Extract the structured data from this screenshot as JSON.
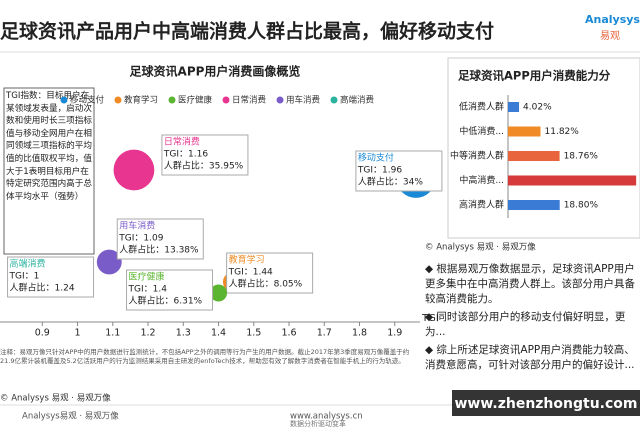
{
  "header": {
    "title": "足球资讯产品用户中高端消费人群占比最高，偏好移动支付",
    "logo": "Analysys",
    "logo_sub": "易观"
  },
  "chart_data": [
    {
      "type": "bubble",
      "title": "足球资讯APP用户消费画像概览",
      "x_label": "TGI",
      "xlim": [
        0.78,
        2.0
      ],
      "xticks": [
        0.9,
        1,
        1.1,
        1.2,
        1.3,
        1.4,
        1.5,
        1.6,
        1.7,
        1.8,
        1.9
      ],
      "note": "TGI指数：目标用户在某领域发表量，启动次数和使用时长三项指标值与移动全网用户在相同领域三项指标的平均值的比值取权平均，值大于1表明目标用户在特定研究范围内高于总体平均水平（强势）",
      "series": [
        {
          "name": "移动支付",
          "color": "#1a8ad6",
          "x": [
            1.96
          ],
          "values": [
            34
          ],
          "x_labels": [
            "TGI：1.96"
          ],
          "value_labels": [
            "人群占比：34%"
          ]
        },
        {
          "name": "教育学习",
          "color": "#f08a24",
          "x": [
            1.44
          ],
          "values": [
            8.05
          ],
          "x_labels": [
            "TGI：1.44"
          ],
          "value_labels": [
            "人群占比：8.05%"
          ]
        },
        {
          "name": "医疗健康",
          "color": "#5cb531",
          "x": [
            1.4
          ],
          "values": [
            6.31
          ],
          "x_labels": [
            "TGI：1.4"
          ],
          "value_labels": [
            "人群占比：6.31%"
          ]
        },
        {
          "name": "日常消费",
          "color": "#e8358f",
          "x": [
            1.16
          ],
          "values": [
            35.95
          ],
          "x_labels": [
            "TGI：1.16"
          ],
          "value_labels": [
            "人群占比：35.95%"
          ]
        },
        {
          "name": "用车消费",
          "color": "#7a5cc8",
          "x": [
            1.09
          ],
          "values": [
            13.38
          ],
          "x_labels": [
            "TGI：1.09"
          ],
          "value_labels": [
            "人群占比：13.38%"
          ]
        },
        {
          "name": "高端消费",
          "color": "#2bb3a0",
          "x": [
            1
          ],
          "values": [
            1.24
          ],
          "x_labels": [
            "TGI：1"
          ],
          "value_labels": [
            "人群占比：1.24"
          ]
        }
      ]
    },
    {
      "type": "hbar",
      "title": "足球资讯APP用户消费能力分",
      "categories": [
        "低消费人群",
        "中低消费...",
        "中等消费人群",
        "中高消费...",
        "高消费人群"
      ],
      "values": [
        4.02,
        11.82,
        18.76,
        46.6,
        18.8
      ],
      "value_labels": [
        "4.02%",
        "11.82%",
        "18.76%",
        null,
        "18.80%"
      ],
      "colors": [
        "#3a7bd5",
        "#f08a24",
        "#e8643c",
        "#d63a3a",
        "#3a7bd5"
      ],
      "xlim": [
        0,
        48
      ]
    }
  ],
  "source_left": "© Analysys 易观 · 易观万像",
  "source_right": "© Analysys 易观 · 易观万像",
  "footnote": "注释：易观万像只针对APP中的用户数据进行监测统计，不包括APP之外的调用等行为产生的用户数据。截止2017年第3季度易观万像覆盖于约21.9亿累计装机覆盖及5.2亿活跃用户的行为监测结果采用自主研发的enfoTech技术，帮助您有效了解数字消费者在智能手机上的行为轨迹。",
  "bullets": [
    "根据易观万像数据显示，足球资讯APP用户更多集中在中高消费人群上。该部分用户具备较高消费能力。",
    "同时该部分用户的移动支付偏好明显，更为...",
    "综上所述足球资讯APP用户消费能力较高、消费意愿高，可针对该部分用户的偏好设计..."
  ],
  "footer": {
    "left": "Analysys易观 · 易观万像",
    "center": "www.analysys.cn",
    "slogan": "数据分析驱动变革",
    "watermark": "www.zhenzhongtu.com"
  }
}
